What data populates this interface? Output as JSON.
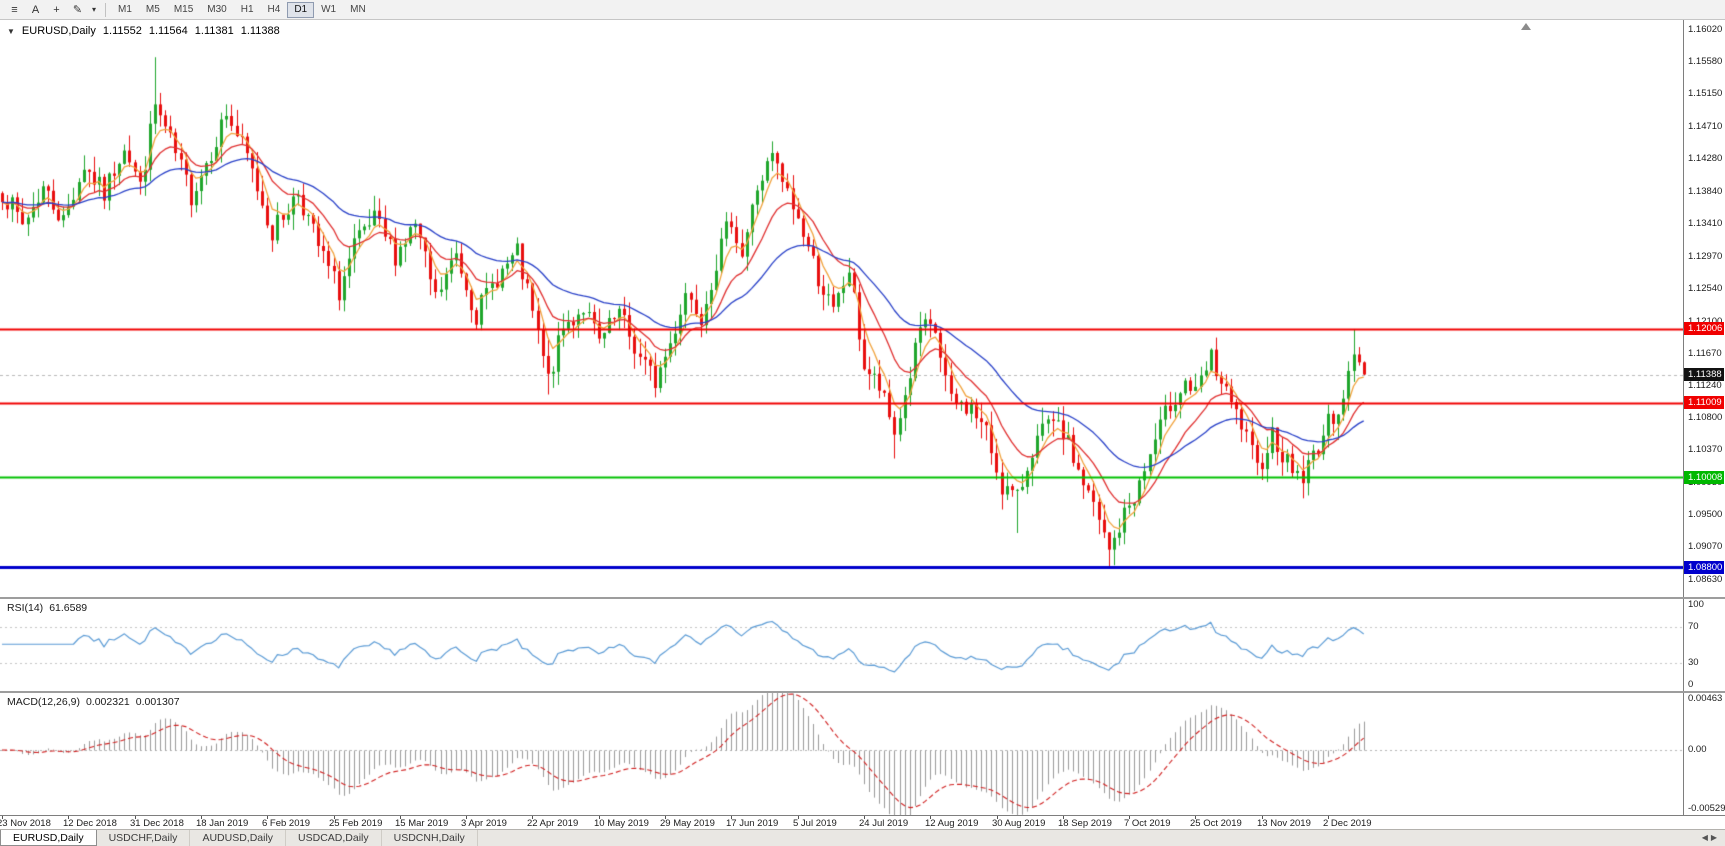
{
  "toolbar": {
    "tools": [
      {
        "name": "chart-properties-icon",
        "glyph": "≡"
      },
      {
        "name": "text-annotation-tool-icon",
        "glyph": "A"
      },
      {
        "name": "crosshair-tool-icon",
        "glyph": "+"
      },
      {
        "name": "draw-tool-icon",
        "glyph": "✎"
      },
      {
        "name": "draw-tool-dropdown-icon",
        "glyph": "▾"
      }
    ],
    "timeframes": [
      {
        "label": "M1",
        "active": false
      },
      {
        "label": "M5",
        "active": false
      },
      {
        "label": "M15",
        "active": false
      },
      {
        "label": "M30",
        "active": false
      },
      {
        "label": "H1",
        "active": false
      },
      {
        "label": "H4",
        "active": false
      },
      {
        "label": "D1",
        "active": true
      },
      {
        "label": "W1",
        "active": false
      },
      {
        "label": "MN",
        "active": false
      }
    ]
  },
  "main_chart": {
    "collapse_glyph": "▼",
    "title": "EURUSD,Daily",
    "open": "1.11552",
    "high": "1.11564",
    "low": "1.11381",
    "close": "1.11388"
  },
  "price_axis": {
    "labels": [
      "1.16020",
      "1.15580",
      "1.15150",
      "1.14710",
      "1.14280",
      "1.13840",
      "1.13410",
      "1.12970",
      "1.12540",
      "1.12100",
      "1.11670",
      "1.11240",
      "1.10800",
      "1.10370",
      "1.09930",
      "1.09500",
      "1.09070",
      "1.08630"
    ],
    "badges": [
      {
        "text": "1.12006",
        "color": "#f00000",
        "price": 1.12006
      },
      {
        "text": "1.11388",
        "color": "#111111",
        "price": 1.11388
      },
      {
        "text": "1.11009",
        "color": "#f00000",
        "price": 1.11009
      },
      {
        "text": "1.10008",
        "color": "#00b800",
        "price": 1.10008
      },
      {
        "text": "1.08800",
        "color": "#0000cc",
        "price": 1.088
      }
    ]
  },
  "rsi_panel": {
    "label": "RSI(14)",
    "value": "61.6589",
    "axis_labels": [
      {
        "text": "100",
        "v": 100
      },
      {
        "text": "70",
        "v": 70
      },
      {
        "text": "30",
        "v": 30
      },
      {
        "text": "0",
        "v": 0
      }
    ]
  },
  "macd_panel": {
    "label": "MACD(12,26,9)",
    "value_main": "0.002321",
    "value_signal": "0.001307",
    "axis_labels": [
      {
        "text": "0.00463",
        "v": 0.00463
      },
      {
        "text": "0.00",
        "v": 0
      },
      {
        "text": "-0.00529",
        "v": -0.00529
      }
    ]
  },
  "time_axis": [
    "23 Nov 2018",
    "12 Dec 2018",
    "31 Dec 2018",
    "18 Jan 2019",
    "6 Feb 2019",
    "25 Feb 2019",
    "15 Mar 2019",
    "3 Apr 2019",
    "22 Apr 2019",
    "10 May 2019",
    "29 May 2019",
    "17 Jun 2019",
    "5 Jul 2019",
    "24 Jul 2019",
    "12 Aug 2019",
    "30 Aug 2019",
    "18 Sep 2019",
    "7 Oct 2019",
    "25 Oct 2019",
    "13 Nov 2019",
    "2 Dec 2019"
  ],
  "tabs": {
    "items": [
      {
        "label": "EURUSD,Daily",
        "active": true
      },
      {
        "label": "USDCHF,Daily",
        "active": false
      },
      {
        "label": "AUDUSD,Daily",
        "active": false
      },
      {
        "label": "USDCAD,Daily",
        "active": false
      },
      {
        "label": "USDCNH,Daily",
        "active": false
      }
    ],
    "scroll_left": "◀",
    "scroll_right": "▶"
  },
  "chart_data": {
    "type": "candlestick",
    "symbol": "EURUSD",
    "timeframe": "Daily",
    "bars": 268,
    "seed": 7,
    "price_range": {
      "top": 1.1615,
      "bottom": 1.084
    },
    "last_ohlc": {
      "open": 1.11552,
      "high": 1.11564,
      "low": 1.11381,
      "close": 1.11388
    },
    "current_price": 1.11388,
    "up_color": "#1fa62c",
    "down_color": "#e80f0f",
    "close_anchors": [
      [
        0,
        1.1385
      ],
      [
        4,
        1.134
      ],
      [
        8,
        1.139
      ],
      [
        12,
        1.1345
      ],
      [
        16,
        1.142
      ],
      [
        20,
        1.138
      ],
      [
        24,
        1.145
      ],
      [
        27,
        1.139
      ],
      [
        30,
        1.15
      ],
      [
        33,
        1.145
      ],
      [
        37,
        1.138
      ],
      [
        41,
        1.144
      ],
      [
        44,
        1.149
      ],
      [
        48,
        1.143
      ],
      [
        53,
        1.133
      ],
      [
        58,
        1.1385
      ],
      [
        62,
        1.131
      ],
      [
        66,
        1.125
      ],
      [
        69,
        1.131
      ],
      [
        73,
        1.1345
      ],
      [
        77,
        1.13
      ],
      [
        81,
        1.134
      ],
      [
        85,
        1.124
      ],
      [
        89,
        1.13
      ],
      [
        93,
        1.122
      ],
      [
        97,
        1.127
      ],
      [
        101,
        1.13
      ],
      [
        104,
        1.122
      ],
      [
        107,
        1.113
      ],
      [
        110,
        1.12
      ],
      [
        114,
        1.123
      ],
      [
        117,
        1.118
      ],
      [
        121,
        1.122
      ],
      [
        125,
        1.116
      ],
      [
        128,
        1.113
      ],
      [
        131,
        1.118
      ],
      [
        134,
        1.125
      ],
      [
        137,
        1.122
      ],
      [
        140,
        1.129
      ],
      [
        143,
        1.135
      ],
      [
        145,
        1.13
      ],
      [
        148,
        1.139
      ],
      [
        151,
        1.143
      ],
      [
        154,
        1.138
      ],
      [
        157,
        1.133
      ],
      [
        160,
        1.127
      ],
      [
        163,
        1.122
      ],
      [
        166,
        1.128
      ],
      [
        169,
        1.115
      ],
      [
        172,
        1.112
      ],
      [
        175,
        1.106
      ],
      [
        177,
        1.111
      ],
      [
        180,
        1.12
      ],
      [
        183,
        1.1195
      ],
      [
        186,
        1.11
      ],
      [
        190,
        1.1095
      ],
      [
        193,
        1.106
      ],
      [
        196,
        1.099
      ],
      [
        199,
        1.097
      ],
      [
        202,
        1.104
      ],
      [
        205,
        1.107
      ],
      [
        208,
        1.106
      ],
      [
        211,
        1.101
      ],
      [
        214,
        1.096
      ],
      [
        217,
        1.09
      ],
      [
        220,
        1.095
      ],
      [
        223,
        1.099
      ],
      [
        226,
        1.105
      ],
      [
        229,
        1.11
      ],
      [
        232,
        1.113
      ],
      [
        234,
        1.111
      ],
      [
        237,
        1.116
      ],
      [
        240,
        1.111
      ],
      [
        243,
        1.107
      ],
      [
        246,
        1.101
      ],
      [
        249,
        1.106
      ],
      [
        252,
        1.102
      ],
      [
        255,
        1.1
      ],
      [
        258,
        1.1045
      ],
      [
        261,
        1.1085
      ],
      [
        263,
        1.111
      ],
      [
        265,
        1.116
      ],
      [
        266,
        1.11552
      ],
      [
        267,
        1.11388
      ]
    ],
    "wick_overrides": {
      "30": {
        "high": 1.1565
      },
      "107": {
        "low": 1.1112
      },
      "128": {
        "low": 1.1108
      },
      "151": {
        "high": 1.1452
      },
      "175": {
        "low": 1.1026
      },
      "199": {
        "low": 1.0926
      },
      "217": {
        "low": 1.0879
      },
      "265": {
        "high": 1.12
      }
    },
    "hlines": [
      {
        "price": 1.12006,
        "color": "#f00000",
        "width": 2
      },
      {
        "price": 1.11009,
        "color": "#f00000",
        "width": 2
      },
      {
        "price": 1.10008,
        "color": "#00c000",
        "width": 2
      },
      {
        "price": 1.088,
        "color": "#0000cc",
        "width": 3
      }
    ],
    "moving_averages": [
      {
        "period": 5,
        "color": "#f0a23c"
      },
      {
        "period": 13,
        "color": "#e03030"
      },
      {
        "period": 34,
        "color": "#2840c8"
      }
    ],
    "rsi": {
      "period": 14,
      "current": 61.6589,
      "levels": [
        70,
        30
      ],
      "range": [
        0,
        100
      ],
      "color": "#5b9bd5"
    },
    "macd": {
      "fast": 12,
      "slow": 26,
      "signal": 9,
      "current_main": 0.002321,
      "current_signal": 0.001307,
      "range": [
        -0.00529,
        0.00463
      ],
      "histogram_color": "#9a9a9a",
      "signal_color": "#d02020"
    }
  }
}
